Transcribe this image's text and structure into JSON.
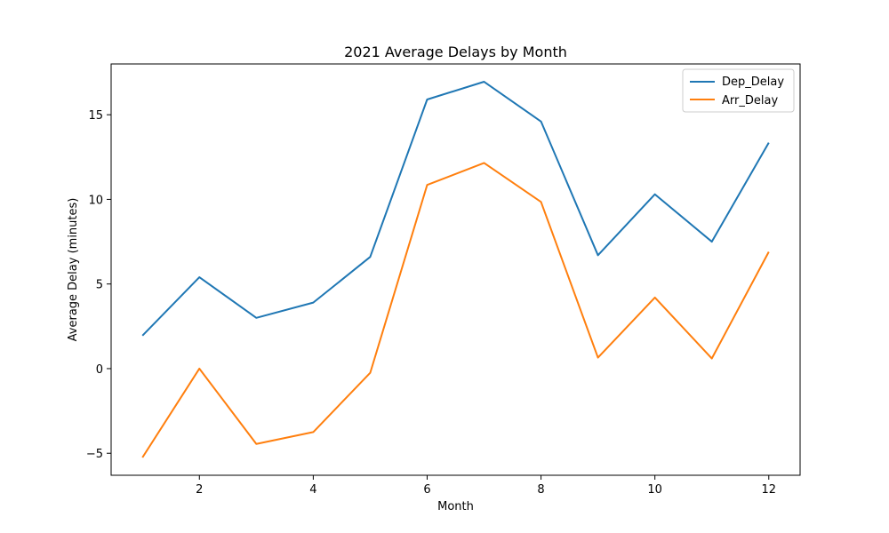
{
  "chart_data": {
    "type": "line",
    "title": "2021 Average Delays by Month",
    "xlabel": "Month",
    "ylabel": "Average Delay (minutes)",
    "x": [
      1,
      2,
      3,
      4,
      5,
      6,
      7,
      8,
      9,
      10,
      11,
      12
    ],
    "xticks": [
      "2",
      "4",
      "6",
      "8",
      "10",
      "12"
    ],
    "xtick_values": [
      2,
      4,
      6,
      8,
      10,
      12
    ],
    "yticks": [
      "−5",
      "0",
      "5",
      "10",
      "15"
    ],
    "ytick_values": [
      -5,
      0,
      5,
      10,
      15
    ],
    "xlim": [
      0.45,
      12.55
    ],
    "ylim": [
      -6.3,
      18.0
    ],
    "grid": false,
    "legend_position": "top-right",
    "series": [
      {
        "name": "Dep_Delay",
        "color": "#1f77b4",
        "values": [
          1.95,
          5.4,
          3.0,
          3.9,
          6.6,
          15.9,
          16.95,
          14.6,
          6.7,
          10.3,
          7.5,
          13.35
        ]
      },
      {
        "name": "Arr_Delay",
        "color": "#ff7f0e",
        "values": [
          -5.25,
          0.0,
          -4.45,
          -3.75,
          -0.25,
          10.85,
          12.15,
          9.85,
          0.65,
          4.2,
          0.6,
          6.9
        ]
      }
    ]
  }
}
